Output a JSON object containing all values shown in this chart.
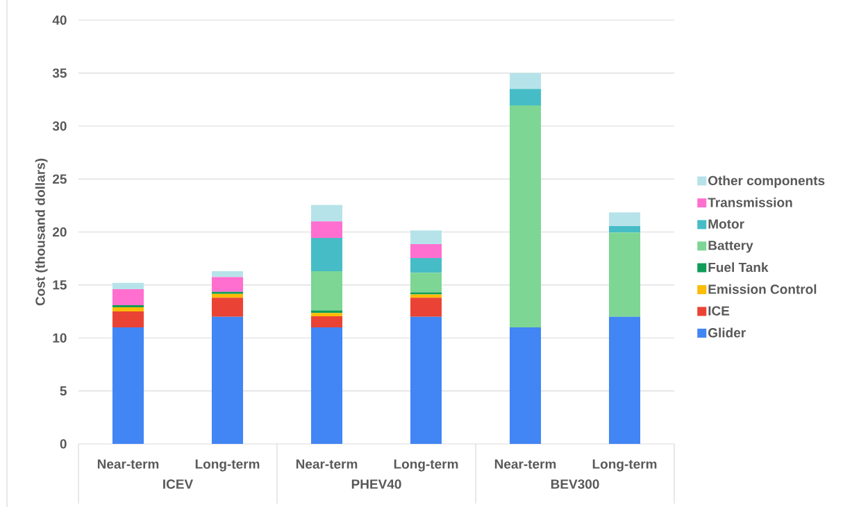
{
  "chart_data": {
    "type": "bar",
    "stacked": true,
    "ylabel": "Cost (thousand dollars)",
    "categories": [
      "Near-term",
      "Long-term",
      "Near-term",
      "Long-term",
      "Near-term",
      "Long-term"
    ],
    "annotations": [
      "ICEV",
      "PHEV40",
      "BEV300"
    ],
    "series": [
      {
        "name": "Glider",
        "color": "#4285f4",
        "values": [
          11,
          12,
          11,
          12,
          11,
          12
        ]
      },
      {
        "name": "ICE",
        "color": "#ea4335",
        "values": [
          1.5,
          1.8,
          1.05,
          1.8,
          0,
          0
        ]
      },
      {
        "name": "Emission Control",
        "color": "#fbbc04",
        "values": [
          0.4,
          0.35,
          0.3,
          0.3,
          0,
          0
        ]
      },
      {
        "name": "Fuel Tank",
        "color": "#0f9d58",
        "values": [
          0.2,
          0.2,
          0.25,
          0.2,
          0,
          0
        ]
      },
      {
        "name": "Battery",
        "color": "#7dd694",
        "values": [
          0,
          0,
          3.7,
          1.85,
          20.95,
          7.95
        ]
      },
      {
        "name": "Motor",
        "color": "#46bdc6",
        "values": [
          0,
          0,
          3.15,
          1.4,
          1.55,
          0.6
        ]
      },
      {
        "name": "Transmission",
        "color": "#ff6fcf",
        "values": [
          1.5,
          1.4,
          1.55,
          1.3,
          0,
          0
        ]
      },
      {
        "name": "Other components",
        "color": "#b6e3e9",
        "values": [
          0.6,
          0.55,
          1.55,
          1.3,
          1.5,
          1.3
        ]
      }
    ],
    "ylim": [
      0,
      40
    ],
    "yticks": [
      0,
      5,
      10,
      15,
      20,
      25,
      30,
      35,
      40
    ],
    "grid": "y",
    "legend": "right"
  }
}
